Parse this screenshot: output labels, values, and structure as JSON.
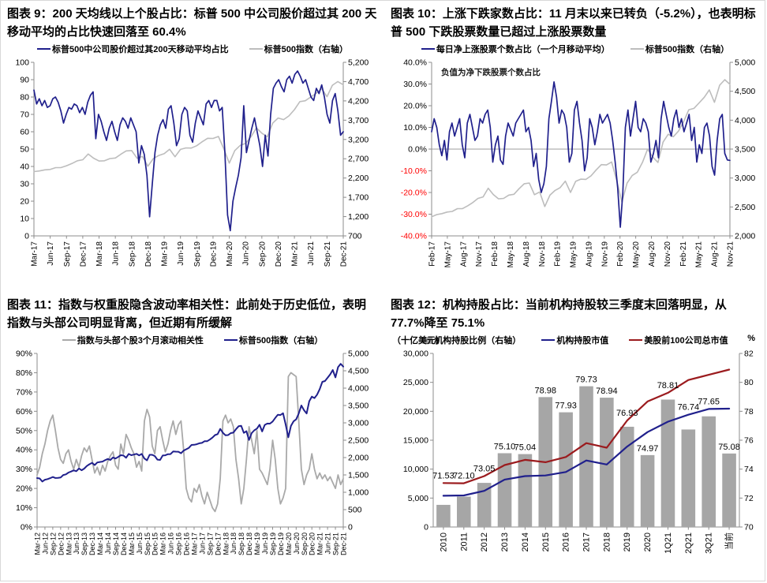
{
  "chart_data": [
    {
      "type": "line",
      "figure": "图表 9",
      "title": "图表 9：200 天均线以上个股占比：标普 500 中公司股价超过其 200 天移动平均的占比快速回落至 60.4%",
      "legend": [
        {
          "label": "标普500中公司股价超过其200天移动平均占比",
          "color": "#20208c",
          "marker": "line"
        },
        {
          "label": "标普500指数（右轴）",
          "color": "#bdbdbd",
          "marker": "line"
        }
      ],
      "left_axis": {
        "min": 0,
        "max": 100,
        "ticks": [
          0,
          10,
          20,
          30,
          40,
          50,
          60,
          70,
          80,
          90,
          100
        ],
        "labels": [
          "0",
          "10",
          "20",
          "30",
          "40",
          "50",
          "60",
          "70",
          "80",
          "90",
          "100"
        ],
        "neg_red": false
      },
      "right_axis": {
        "min": 700,
        "max": 5200,
        "ticks": [
          700,
          1200,
          1700,
          2200,
          2700,
          3200,
          3700,
          4200,
          4700,
          5200
        ],
        "labels": [
          "700",
          "1,200",
          "1,700",
          "2,200",
          "2,700",
          "3,200",
          "3,700",
          "4,200",
          "4,700",
          "5,200"
        ]
      },
      "x_labels": [
        "Mar-17",
        "Jun-17",
        "Sep-17",
        "Dec-17",
        "Mar-18",
        "Jun-18",
        "Sep-18",
        "Dec-18",
        "Mar-19",
        "Jun-19",
        "Sep-19",
        "Dec-19",
        "Mar-20",
        "Jun-20",
        "Sep-20",
        "Dec-20",
        "Mar-21",
        "Jun-21",
        "Sep-21",
        "Dec-21"
      ],
      "series": [
        {
          "name": "标普500指数（右轴）",
          "axis": "right",
          "color": "#bdbdbd",
          "width": 1.6,
          "values": [
            2368,
            2384,
            2412,
            2423,
            2470,
            2472,
            2519,
            2575,
            2648,
            2674,
            2824,
            2714,
            2641,
            2648,
            2705,
            2718,
            2816,
            2902,
            2914,
            2712,
            2760,
            2507,
            2704,
            2785,
            2834,
            2946,
            2752,
            2942,
            2980,
            2977,
            3038,
            3141,
            3231,
            3226,
            3278,
            2954,
            2585,
            2912,
            3044,
            3100,
            3271,
            3500,
            3363,
            3270,
            3622,
            3756,
            3714,
            3811,
            3973,
            4181,
            4204,
            4298,
            4395,
            4523,
            4308,
            4605,
            4700,
            4620
          ]
        },
        {
          "name": "标普500中公司股价超过其200天移动平均占比",
          "axis": "left",
          "color": "#20208c",
          "width": 1.7,
          "values": [
            84,
            76,
            79,
            75,
            78,
            74,
            75,
            79,
            80,
            77,
            72,
            65,
            70,
            74,
            73,
            76,
            75,
            71,
            74,
            70,
            77,
            81,
            83,
            56,
            70,
            66,
            60,
            55,
            62,
            66,
            60,
            55,
            64,
            68,
            66,
            62,
            68,
            64,
            60,
            42,
            52,
            47,
            35,
            11,
            30,
            48,
            58,
            64,
            67,
            62,
            73,
            75,
            65,
            52,
            56,
            70,
            74,
            72,
            58,
            54,
            65,
            72,
            68,
            64,
            76,
            78,
            74,
            78,
            78,
            72,
            74,
            48,
            12,
            3,
            20,
            28,
            35,
            45,
            75,
            48,
            55,
            62,
            68,
            60,
            52,
            40,
            58,
            46,
            70,
            85,
            88,
            90,
            86,
            83,
            90,
            92,
            88,
            93,
            95,
            92,
            88,
            90,
            85,
            80,
            78,
            85,
            82,
            87,
            80,
            70,
            65,
            78,
            82,
            72,
            58,
            60
          ]
        }
      ],
      "last_value_note": "60.4"
    },
    {
      "type": "line",
      "figure": "图表 10",
      "title": "图表 10：上涨下跌家数占比：11 月末以来已转负（-5.2%），也表明标普 500 下跌股票数量已超过上涨股票数量",
      "legend": [
        {
          "label": "每日净上涨股票个数占比（一个月移动平均）",
          "color": "#20208c",
          "marker": "line"
        },
        {
          "label": "标普500指数（右轴）",
          "color": "#bdbdbd",
          "marker": "line"
        }
      ],
      "annotation": "负值为净下跌股票个数占比",
      "zero_line": true,
      "left_axis": {
        "min": -40,
        "max": 40,
        "ticks": [
          40,
          30,
          20,
          10,
          0,
          -10,
          -20,
          -30,
          -40
        ],
        "labels": [
          "40.0%",
          "30.0%",
          "20.0%",
          "10.0%",
          "0.0%",
          "-10.0%",
          "-20.0%",
          "-30.0%",
          "-40.0%"
        ],
        "neg_red": true
      },
      "right_axis": {
        "min": 2000,
        "max": 5000,
        "ticks": [
          2000,
          2500,
          3000,
          3500,
          4000,
          4500,
          5000
        ],
        "labels": [
          "2,000",
          "2,500",
          "3,000",
          "3,500",
          "4,000",
          "4,500",
          "5,000"
        ]
      },
      "x_labels": [
        "Feb-17",
        "May-17",
        "Aug-17",
        "Nov-17",
        "Feb-18",
        "May-18",
        "Aug-18",
        "Nov-18",
        "Feb-19",
        "May-19",
        "Aug-19",
        "Nov-19",
        "Feb-20",
        "May-20",
        "Aug-20",
        "Nov-20",
        "Feb-21",
        "May-21",
        "Aug-21",
        "Nov-21"
      ],
      "series": [
        {
          "name": "标普500指数（右轴）",
          "axis": "right",
          "color": "#bdbdbd",
          "width": 1.6,
          "values": [
            2330,
            2368,
            2384,
            2412,
            2423,
            2470,
            2472,
            2519,
            2575,
            2648,
            2674,
            2824,
            2714,
            2641,
            2648,
            2705,
            2718,
            2816,
            2902,
            2914,
            2712,
            2760,
            2507,
            2704,
            2785,
            2834,
            2946,
            2752,
            2942,
            2980,
            2977,
            3038,
            3141,
            3231,
            3226,
            3278,
            2954,
            2585,
            2912,
            3044,
            3100,
            3271,
            3500,
            3363,
            3270,
            3622,
            3756,
            3714,
            3811,
            3973,
            4181,
            4204,
            4298,
            4395,
            4523,
            4308,
            4605,
            4700,
            4620
          ]
        },
        {
          "name": "每日净上涨股票个数占比（一个月移动平均）",
          "axis": "left",
          "color": "#20208c",
          "width": 1.7,
          "values": [
            8,
            14,
            10,
            2,
            -3,
            4,
            -5,
            8,
            12,
            6,
            10,
            14,
            2,
            -4,
            12,
            16,
            10,
            4,
            6,
            14,
            12,
            16,
            18,
            10,
            -6,
            2,
            6,
            -5,
            -7,
            6,
            12,
            9,
            6,
            12,
            14,
            16,
            18,
            8,
            10,
            4,
            -8,
            -2,
            -14,
            -20,
            -16,
            -8,
            14,
            22,
            31,
            24,
            12,
            18,
            16,
            10,
            -6,
            -2,
            18,
            22,
            12,
            4,
            -10,
            -4,
            14,
            10,
            2,
            8,
            16,
            12,
            14,
            16,
            12,
            4,
            -6,
            -18,
            -36,
            -20,
            10,
            18,
            6,
            14,
            22,
            10,
            8,
            14,
            12,
            8,
            -6,
            -2,
            4,
            -4,
            14,
            22,
            16,
            10,
            6,
            14,
            18,
            10,
            14,
            8,
            12,
            16,
            4,
            10,
            -6,
            2,
            -2,
            10,
            12,
            6,
            -8,
            -12,
            4,
            14,
            16,
            -2,
            -5,
            -5.2
          ]
        }
      ],
      "last_value_note": "-5.2%"
    },
    {
      "type": "line",
      "figure": "图表 11",
      "title": "图表 11：指数与权重股隐含波动率相关性：此前处于历史低位，表明指数与头部公司明显背离，但近期有所缓解",
      "legend": [
        {
          "label": "指数与头部个股3个月滚动相关性",
          "color": "#a9a9a9",
          "marker": "line"
        },
        {
          "label": "标普500指数（右轴）",
          "color": "#20208c",
          "marker": "line"
        }
      ],
      "left_axis": {
        "min": 0,
        "max": 90,
        "ticks": [
          0,
          10,
          20,
          30,
          40,
          50,
          60,
          70,
          80,
          90
        ],
        "labels": [
          "0%",
          "10%",
          "20%",
          "30%",
          "40%",
          "50%",
          "60%",
          "70%",
          "80%",
          "90%"
        ],
        "neg_red": false
      },
      "right_axis": {
        "min": 0,
        "max": 5000,
        "ticks": [
          0,
          500,
          1000,
          1500,
          2000,
          2500,
          3000,
          3500,
          4000,
          4500,
          5000
        ],
        "labels": [
          "0",
          "500",
          "1,000",
          "1,500",
          "2,000",
          "2,500",
          "3,000",
          "3,500",
          "4,000",
          "4,500",
          "5,000"
        ]
      },
      "x_labels": [
        "Mar-12",
        "Jun-12",
        "Sep-12",
        "Dec-12",
        "Mar-13",
        "Jun-13",
        "Sep-13",
        "Dec-13",
        "Mar-14",
        "Jun-14",
        "Sep-14",
        "Dec-14",
        "Mar-15",
        "Jun-15",
        "Sep-15",
        "Dec-15",
        "Mar-16",
        "Jun-16",
        "Sep-16",
        "Dec-16",
        "Mar-17",
        "Jun-17",
        "Sep-17",
        "Dec-17",
        "Mar-18",
        "Jun-18",
        "Sep-18",
        "Dec-18",
        "Mar-19",
        "Jun-19",
        "Sep-19",
        "Dec-19",
        "Mar-20",
        "Jun-20",
        "Sep-20",
        "Dec-20",
        "Mar-21",
        "Jun-21",
        "Sep-21",
        "Dec-21"
      ],
      "series": [
        {
          "name": "指数与头部个股3个月滚动相关性",
          "axis": "left",
          "color": "#a9a9a9",
          "width": 1.8,
          "values": [
            27,
            31,
            38,
            43,
            50,
            55,
            58,
            50,
            41,
            35,
            33,
            38,
            40,
            34,
            30,
            35,
            31,
            37,
            41,
            39,
            42,
            35,
            28,
            31,
            27,
            32,
            29,
            34,
            37,
            39,
            32,
            30,
            43,
            38,
            48,
            45,
            41,
            38,
            31,
            34,
            29,
            55,
            61,
            57,
            42,
            38,
            50,
            52,
            45,
            39,
            43,
            50,
            55,
            48,
            53,
            55,
            40,
            20,
            15,
            13,
            20,
            18,
            22,
            16,
            12,
            18,
            14,
            10,
            8,
            12,
            25,
            55,
            58,
            54,
            56,
            52,
            35,
            25,
            12,
            20,
            35,
            52,
            45,
            38,
            50,
            30,
            28,
            25,
            22,
            30,
            45,
            35,
            20,
            12,
            15,
            20,
            78,
            80,
            79,
            78,
            55,
            30,
            22,
            27,
            30,
            38,
            30,
            25,
            28,
            25,
            27,
            24,
            26,
            23,
            20,
            27,
            22,
            25
          ]
        },
        {
          "name": "标普500指数（右轴）",
          "axis": "right",
          "color": "#20208c",
          "width": 2,
          "values": [
            1408,
            1397,
            1310,
            1362,
            1379,
            1406,
            1441,
            1412,
            1416,
            1426,
            1498,
            1515,
            1569,
            1598,
            1631,
            1606,
            1686,
            1633,
            1682,
            1757,
            1806,
            1848,
            1783,
            1859,
            1872,
            1884,
            1924,
            1960,
            1931,
            2003,
            1972,
            2018,
            2068,
            2059,
            1995,
            2105,
            2068,
            2086,
            2107,
            2063,
            2104,
            1972,
            1920,
            2079,
            2080,
            2044,
            1940,
            1932,
            2060,
            2065,
            2097,
            2099,
            2174,
            2171,
            2168,
            2126,
            2199,
            2239,
            2279,
            2364,
            2368,
            2384,
            2412,
            2423,
            2470,
            2472,
            2519,
            2575,
            2648,
            2674,
            2824,
            2714,
            2641,
            2648,
            2705,
            2718,
            2816,
            2902,
            2914,
            2712,
            2760,
            2507,
            2704,
            2785,
            2834,
            2946,
            2752,
            2942,
            2980,
            2977,
            3038,
            3141,
            3231,
            3226,
            3278,
            2954,
            2585,
            2912,
            3044,
            3100,
            3271,
            3500,
            3363,
            3270,
            3622,
            3756,
            3714,
            3811,
            3973,
            4181,
            4204,
            4298,
            4395,
            4523,
            4308,
            4605,
            4700,
            4620
          ]
        }
      ]
    },
    {
      "type": "bar+line",
      "figure": "图表 12",
      "title": "图表 12：机构持股占比：当前机构持股较三季度末回落明显，从 77.7%降至 75.1%",
      "axis_unit_left": "（十亿美元）",
      "axis_unit_right": "%",
      "legend": [
        {
          "label": "机构持股比例（右轴）",
          "color": "#a6a6a6",
          "marker": "bar"
        },
        {
          "label": "机构持股市值",
          "color": "#20208c",
          "marker": "line"
        },
        {
          "label": "美股前100公司总市值",
          "color": "#9b1b1e",
          "marker": "line"
        }
      ],
      "left_axis": {
        "min": 0,
        "max": 30000,
        "ticks": [
          0,
          5000,
          10000,
          15000,
          20000,
          25000,
          30000
        ],
        "labels": [
          "0",
          "5,000",
          "10,000",
          "15,000",
          "20,000",
          "25,000",
          "30,000"
        ],
        "neg_red": false
      },
      "right_axis": {
        "min": 70,
        "max": 82,
        "ticks": [
          70,
          72,
          74,
          76,
          78,
          80,
          82
        ],
        "labels": [
          "70",
          "72",
          "74",
          "76",
          "78",
          "80",
          "82"
        ]
      },
      "x_labels": [
        "2010",
        "2011",
        "2012",
        "2013",
        "2014",
        "2015",
        "2016",
        "2017",
        "2018",
        "2019",
        "2020",
        "1Q21",
        "2Q21",
        "3Q21",
        "当前"
      ],
      "bars": {
        "name": "机构持股比例（右轴）",
        "axis": "right",
        "color": "#a6a6a6",
        "values": [
          71.53,
          72.1,
          73.05,
          75.1,
          75.04,
          78.98,
          77.93,
          79.73,
          78.94,
          76.93,
          74.97,
          78.81,
          76.74,
          77.65,
          75.08
        ],
        "labels": [
          "71.53",
          "72.10",
          "73.05",
          "75.10",
          "75.04",
          "78.98",
          "77.93",
          "79.73",
          "78.94",
          "76.93",
          "74.97",
          "78.81",
          "76.74",
          "77.65",
          "75.08"
        ]
      },
      "series": [
        {
          "name": "机构持股市值",
          "axis": "left",
          "color": "#20208c",
          "width": 2.2,
          "values": [
            5400,
            5450,
            6250,
            8200,
            8800,
            8900,
            9500,
            11500,
            10800,
            13900,
            16400,
            18200,
            19400,
            20400,
            20450
          ]
        },
        {
          "name": "美股前100公司总市值",
          "axis": "left",
          "color": "#9b1b1e",
          "width": 2.2,
          "values": [
            7600,
            7550,
            8800,
            10700,
            11600,
            11200,
            12100,
            14500,
            13700,
            18400,
            21700,
            23200,
            25400,
            26300,
            27200
          ]
        }
      ]
    }
  ]
}
